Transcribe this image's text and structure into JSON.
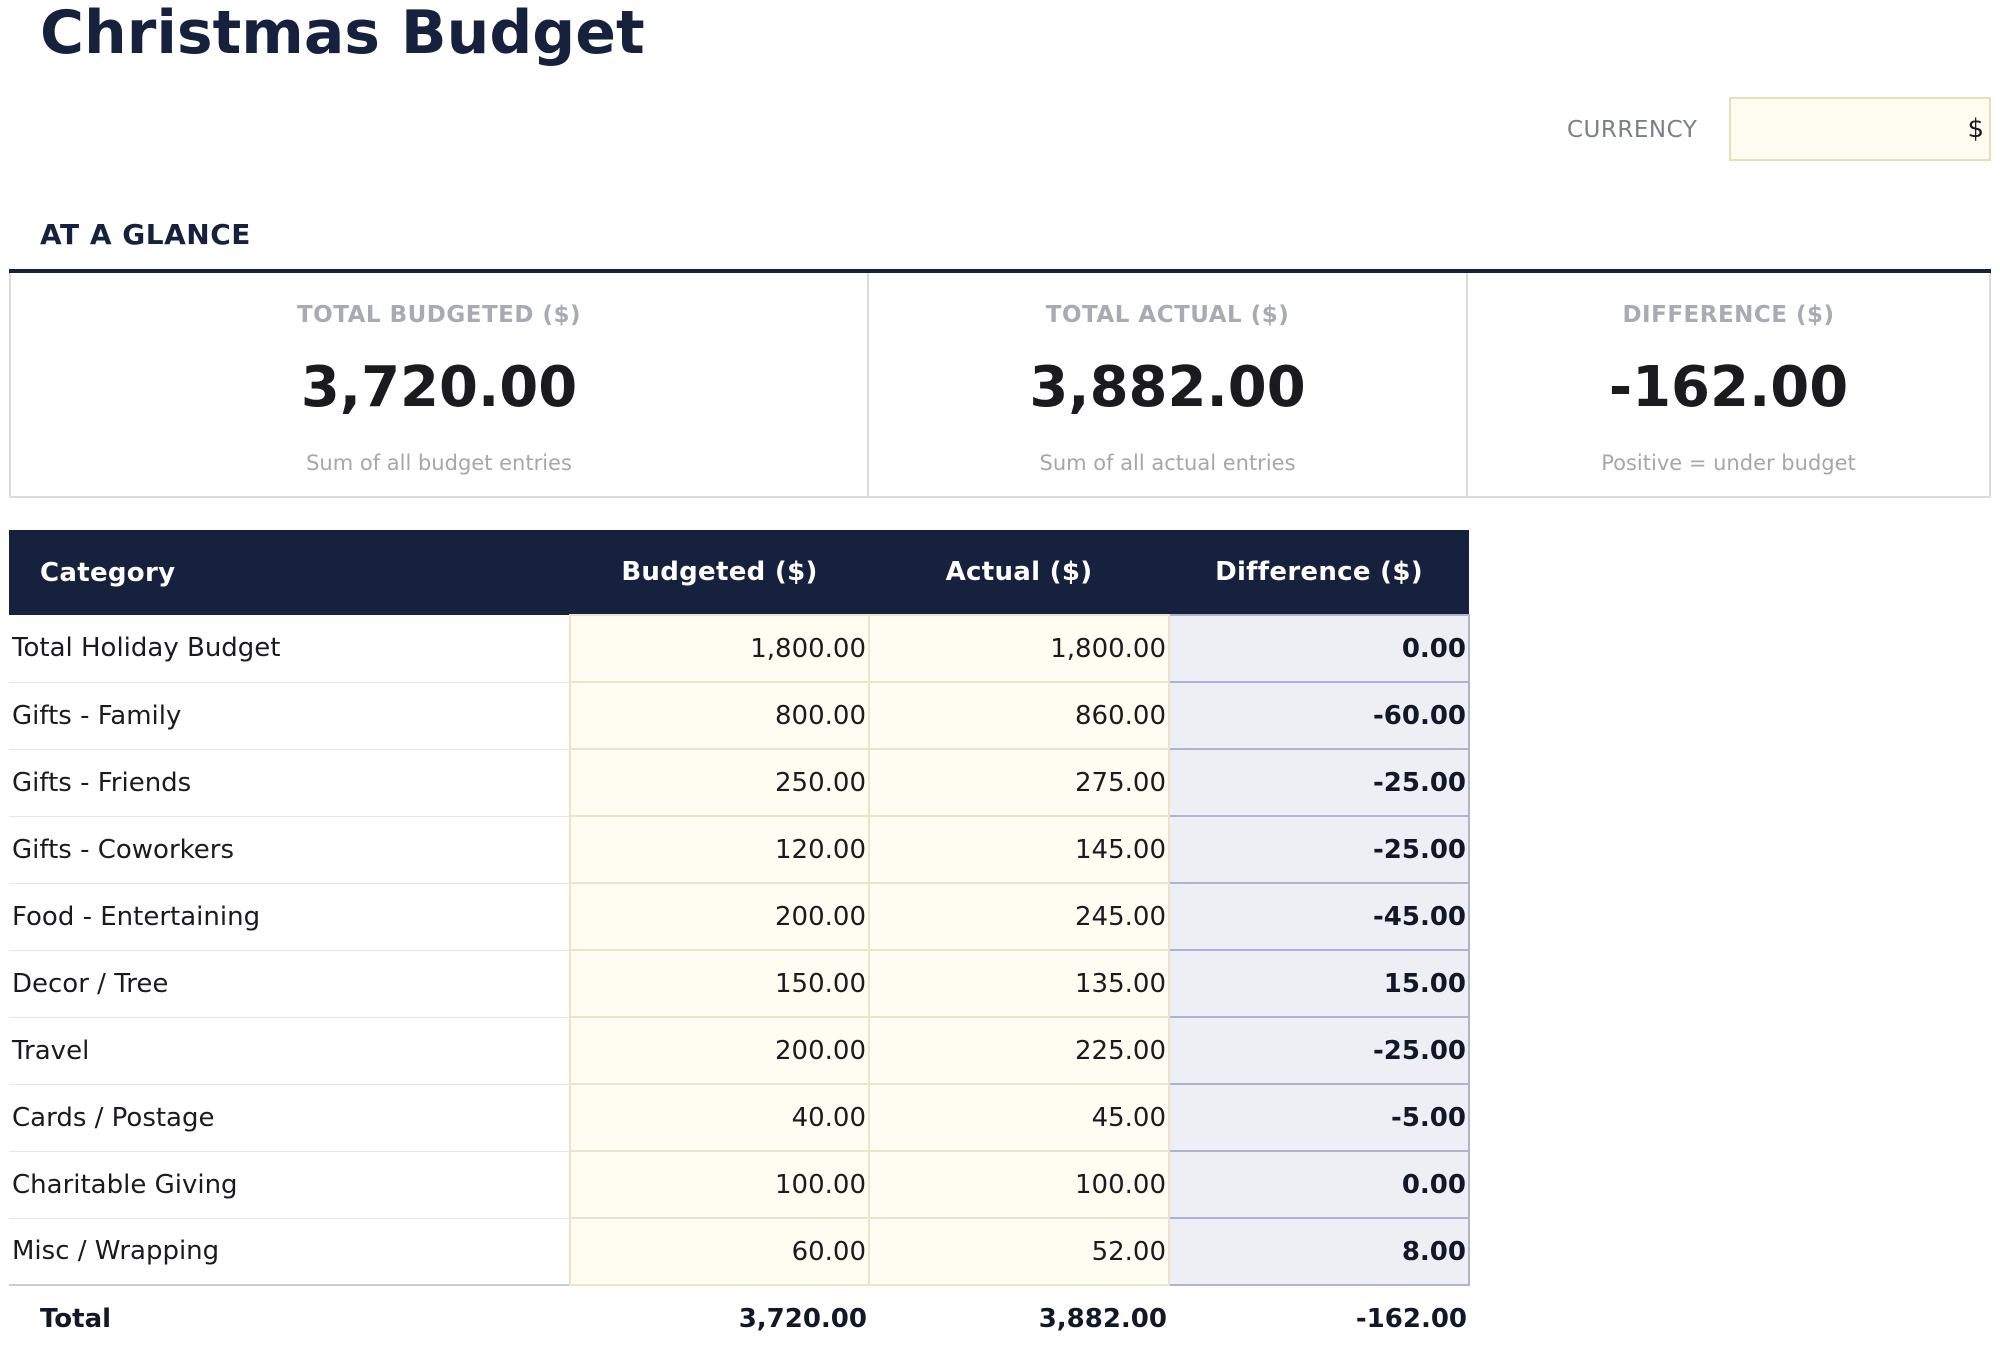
{
  "title": "Christmas Budget",
  "currency": {
    "label": "CURRENCY",
    "value": "$"
  },
  "glance": {
    "heading": "AT A GLANCE",
    "cards": [
      {
        "label": "TOTAL BUDGETED ($)",
        "value": "3,720.00",
        "note": "Sum of all budget entries"
      },
      {
        "label": "TOTAL ACTUAL ($)",
        "value": "3,882.00",
        "note": "Sum of all actual entries"
      },
      {
        "label": "DIFFERENCE ($)",
        "value": "-162.00",
        "note": "Positive = under budget"
      }
    ]
  },
  "table": {
    "headers": {
      "category": "Category",
      "budgeted": "Budgeted ($)",
      "actual": "Actual ($)",
      "difference": "Difference ($)"
    },
    "rows": [
      {
        "category": "Total Holiday Budget",
        "budgeted": "1,800.00",
        "actual": "1,800.00",
        "difference": "0.00"
      },
      {
        "category": "Gifts - Family",
        "budgeted": "800.00",
        "actual": "860.00",
        "difference": "-60.00"
      },
      {
        "category": "Gifts - Friends",
        "budgeted": "250.00",
        "actual": "275.00",
        "difference": "-25.00"
      },
      {
        "category": "Gifts - Coworkers",
        "budgeted": "120.00",
        "actual": "145.00",
        "difference": "-25.00"
      },
      {
        "category": "Food - Entertaining",
        "budgeted": "200.00",
        "actual": "245.00",
        "difference": "-45.00"
      },
      {
        "category": "Decor / Tree",
        "budgeted": "150.00",
        "actual": "135.00",
        "difference": "15.00"
      },
      {
        "category": "Travel",
        "budgeted": "200.00",
        "actual": "225.00",
        "difference": "-25.00"
      },
      {
        "category": "Cards / Postage",
        "budgeted": "40.00",
        "actual": "45.00",
        "difference": "-5.00"
      },
      {
        "category": "Charitable Giving",
        "budgeted": "100.00",
        "actual": "100.00",
        "difference": "0.00"
      },
      {
        "category": "Misc / Wrapping",
        "budgeted": "60.00",
        "actual": "52.00",
        "difference": "8.00"
      }
    ],
    "total": {
      "label": "Total",
      "budgeted": "3,720.00",
      "actual": "3,882.00",
      "difference": "-162.00"
    }
  },
  "colors": {
    "brand_navy": "#16213e",
    "input_fill": "#fffcf1",
    "input_border": "#e8dfb8",
    "difference_fill": "#eeeff5",
    "difference_border": "#aeb4d0"
  }
}
